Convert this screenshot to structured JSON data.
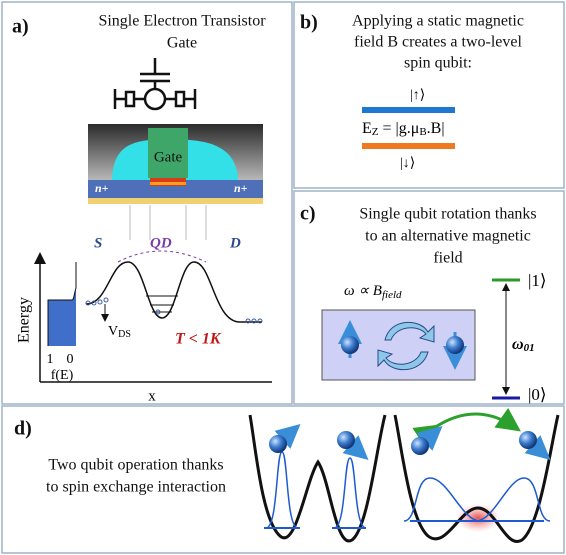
{
  "panel_a": {
    "label": "a)",
    "title_lines": [
      "Single Electron Transistor",
      "Gate"
    ],
    "gate_label": "Gate",
    "n_plus": [
      "n+",
      "n+"
    ],
    "regions": [
      "S",
      "QD",
      "D"
    ],
    "y_axis_label": "Energy",
    "x_axis_label": "x",
    "fermi_ticks": [
      "1",
      "0"
    ],
    "fermi_label": "f(E)",
    "vds": {
      "main": "V",
      "sub": "DS"
    },
    "temperature": "T < 1K"
  },
  "panel_b": {
    "label": "b)",
    "text_lines": [
      "Applying a static magnetic",
      "field B creates a two-level",
      "spin qubit:"
    ],
    "state_up": "|↑⟩",
    "zeeman_parts": [
      "E",
      "Z",
      " = |g.",
      "μ",
      "B",
      ".B|"
    ],
    "state_down": "|↓⟩"
  },
  "panel_c": {
    "label": "c)",
    "text_lines": [
      "Single qubit rotation thanks",
      "to an alternative magnetic",
      "field"
    ],
    "omega_prop": {
      "main": "ω ∝ B",
      "sub": "field"
    },
    "state_1": "|1⟩",
    "omega_01": {
      "main": "ω",
      "sub": "01"
    },
    "state_0": "|0⟩"
  },
  "panel_d": {
    "label": "d)",
    "text_lines": [
      "Two qubit operation thanks",
      "to spin exchange interaction"
    ]
  }
}
